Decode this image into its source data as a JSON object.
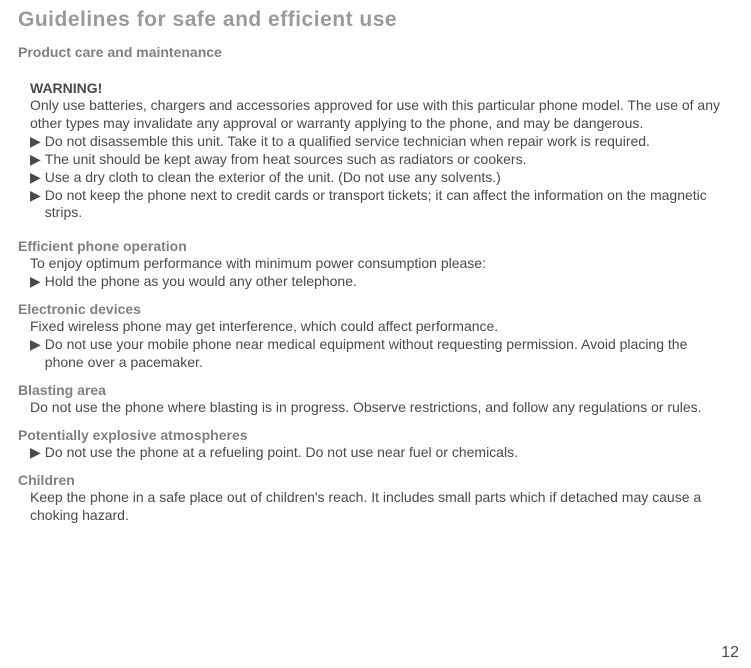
{
  "pageTitle": "Guidelines for safe and efficient use",
  "subtitle": "Product care and maintenance",
  "warning": {
    "heading": "WARNING!",
    "intro": "Only use batteries, chargers and accessories approved for use with this particular phone model. The use of any other types may invalidate any approval or warranty applying to the phone, and may be dangerous.",
    "bullets": [
      "Do not disassemble this unit. Take it to a qualified service technician when repair work is required.",
      "The unit should be kept away from heat sources such as radiators or cookers.",
      "Use a dry cloth to clean the exterior of the unit. (Do not use any solvents.)",
      "Do not keep the phone next to credit cards or transport tickets; it can affect the information on the magnetic strips."
    ]
  },
  "sections": [
    {
      "heading": "Efficient phone operation",
      "intro": "To enjoy optimum performance with minimum power consumption please:",
      "bullets": [
        "Hold the phone as you would any other telephone."
      ]
    },
    {
      "heading": "Electronic devices",
      "intro": "Fixed wireless phone may get interference, which could affect performance.",
      "bullets": [
        "Do not use your mobile phone near medical equipment without requesting permission. Avoid placing the phone over a pacemaker."
      ]
    },
    {
      "heading": "Blasting area",
      "intro": "Do not use the phone where blasting is in progress. Observe restrictions, and follow any regulations or rules.",
      "bullets": []
    },
    {
      "heading": "Potentially explosive atmospheres",
      "intro": "",
      "bullets": [
        "Do not use the phone at a refueling point. Do not use near fuel or chemicals."
      ]
    },
    {
      "heading": "Children",
      "intro": "Keep the phone in a safe place out of children's reach. It includes small parts which if detached may cause a choking hazard.",
      "bullets": []
    }
  ],
  "pageNumber": "12",
  "colors": {
    "title": "#9a9a9a",
    "heading": "#808080",
    "body": "#4a4a4a",
    "background": "#ffffff"
  },
  "bulletMarker": "▶"
}
